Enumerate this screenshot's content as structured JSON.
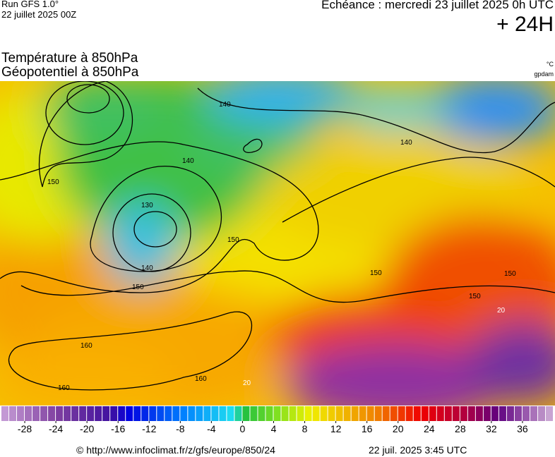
{
  "header": {
    "run": "Run GFS 1.0°",
    "run_date": "22 juillet 2025 00Z",
    "valid": "Echéance : mercredi 23 juillet 2025 0h UTC",
    "lead": "+ 24H",
    "title_line1": "Température à 850hPa",
    "title_line2": "Géopotentiel à 850hPa",
    "unit_temp": "°C",
    "unit_geo": "gpdam"
  },
  "map": {
    "contour_labels": [
      "140",
      "140",
      "140",
      "150",
      "130",
      "150",
      "140",
      "150",
      "150",
      "150",
      "150",
      "160",
      "160",
      "160",
      "20",
      "20"
    ]
  },
  "colorbar": {
    "lim": [
      -31,
      40
    ],
    "ticks": [
      -28,
      -24,
      -20,
      -16,
      -12,
      -8,
      -4,
      0,
      4,
      8,
      12,
      16,
      20,
      24,
      28,
      32,
      36
    ]
  },
  "footer": {
    "source": "© http://www.infoclimat.fr/z/gfs/europe/850/24",
    "generated": "22 juil. 2025  3:45 UTC"
  }
}
